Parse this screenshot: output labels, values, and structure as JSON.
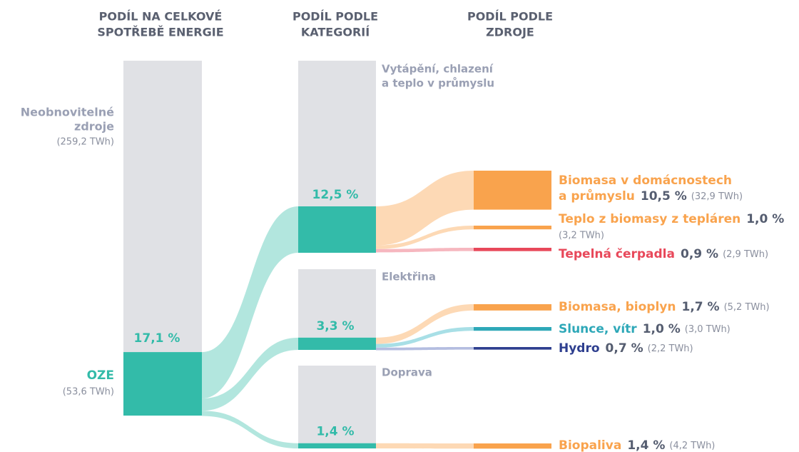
{
  "chart_data": {
    "type": "sankey",
    "columns": [
      [
        "PODÍL NA CELKOVÉ",
        "SPOTŘEBĚ ENERGIE"
      ],
      [
        "PODÍL PODLE",
        "KATEGORIÍ"
      ],
      [
        "PODÍL PODLE",
        "ZDROJE"
      ]
    ],
    "rest": {
      "name": [
        "Neobnovitelné",
        "zdroje"
      ],
      "energy": "(259,2 TWh)",
      "color": "#e0e1e5"
    },
    "total": {
      "name": "OZE",
      "value": 17.1,
      "value_label": "17,1 %",
      "energy": "(53,6 TWh)",
      "color": "#33bba9",
      "flow_color": "#b2e6de"
    },
    "categories": [
      {
        "name": [
          "Vytápění, chlazení",
          "a teplo v průmyslu"
        ],
        "value": 12.5,
        "value_label": "12,5 %"
      },
      {
        "name": [
          "Elektřina"
        ],
        "value": 3.3,
        "value_label": "3,3 %"
      },
      {
        "name": [
          "Doprava"
        ],
        "value": 1.4,
        "value_label": "1,4 %"
      }
    ],
    "sources": [
      {
        "category": 0,
        "name": [
          "Biomasa v domácnostech",
          "a průmyslu"
        ],
        "value": 10.5,
        "value_label": "10,5 %",
        "energy": "(32,9 TWh)",
        "color": "#f9a34d",
        "flow_color": "#fdd9b5"
      },
      {
        "category": 0,
        "name": [
          "Teplo z biomasy z tepláren"
        ],
        "value": 1.0,
        "value_label": "1,0 %",
        "energy": "(3,2 TWh)",
        "color": "#f9a34d",
        "flow_color": "#fdd9b5"
      },
      {
        "category": 0,
        "name": [
          "Tepelná čerpadla"
        ],
        "value": 0.9,
        "value_label": "0,9 %",
        "energy": "(2,9 TWh)",
        "color": "#e8485a",
        "flow_color": "#f6b7bf"
      },
      {
        "category": 1,
        "name": [
          "Biomasa, bioplyn"
        ],
        "value": 1.7,
        "value_label": "1,7 %",
        "energy": "(5,2 TWh)",
        "color": "#f9a34d",
        "flow_color": "#fdd9b5"
      },
      {
        "category": 1,
        "name": [
          "Slunce, vítr"
        ],
        "value": 1.0,
        "value_label": "1,0 %",
        "energy": "(3,0 TWh)",
        "color": "#2ea8b8",
        "flow_color": "#a8dfe6"
      },
      {
        "category": 1,
        "name": [
          "Hydro"
        ],
        "value": 0.7,
        "value_label": "0,7 %",
        "energy": "(2,2 TWh)",
        "color": "#2e3f8f",
        "flow_color": "#b4bde0"
      },
      {
        "category": 2,
        "name": [
          "Biopaliva"
        ],
        "value": 1.4,
        "value_label": "1,4 %",
        "energy": "(4,2 TWh)",
        "color": "#f9a34d",
        "flow_color": "#fdd9b5"
      }
    ]
  }
}
